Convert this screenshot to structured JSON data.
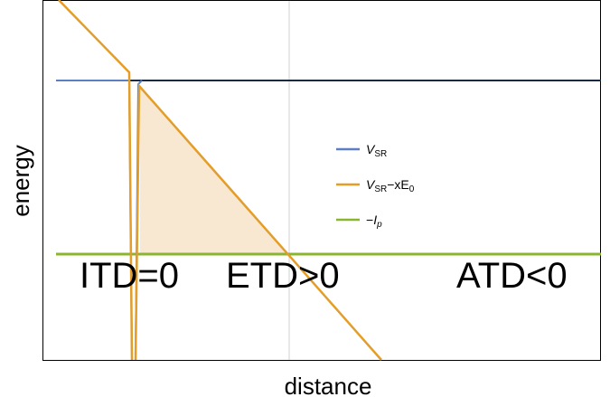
{
  "axes": {
    "x_label": "distance",
    "y_label": "energy"
  },
  "legend": [
    {
      "parts": [
        "V",
        "SR"
      ]
    },
    {
      "parts": [
        "V",
        "SR",
        "−xE",
        "0"
      ]
    },
    {
      "parts": [
        "−",
        "I",
        "p"
      ]
    }
  ],
  "annotations": [
    "ITD=0",
    "ETD>0",
    "ATD<0"
  ]
}
